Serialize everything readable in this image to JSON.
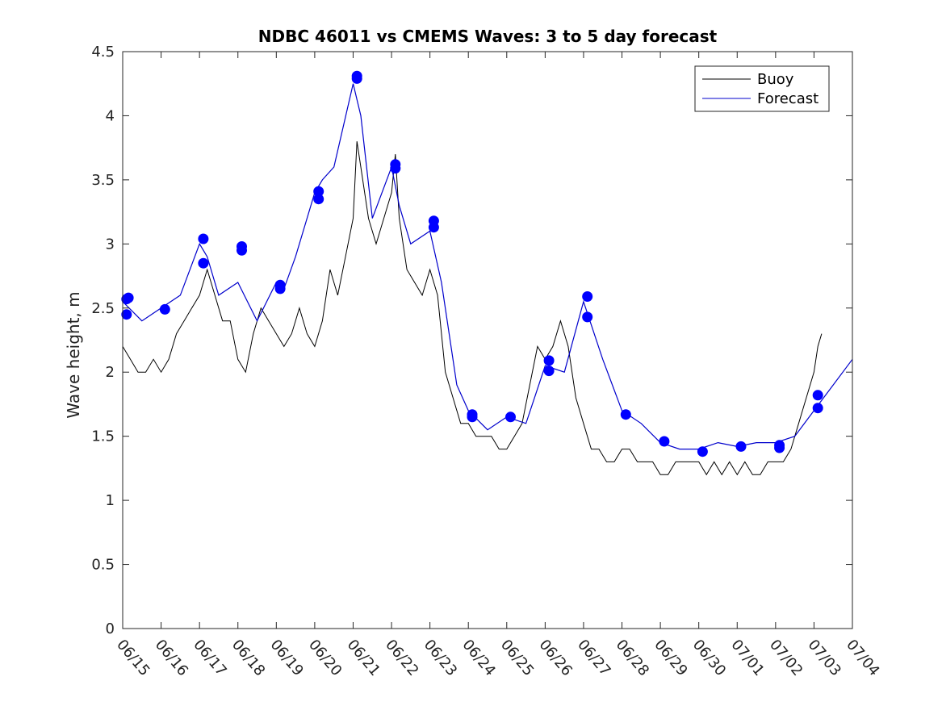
{
  "chart_data": {
    "type": "line",
    "title": "NDBC 46011 vs CMEMS Waves: 3 to 5 day forecast",
    "xlabel": "",
    "ylabel": "Wave height, m",
    "x_tick_labels": [
      "06/15",
      "06/16",
      "06/17",
      "06/18",
      "06/19",
      "06/20",
      "06/21",
      "06/22",
      "06/23",
      "06/24",
      "06/25",
      "06/26",
      "06/27",
      "06/28",
      "06/29",
      "06/30",
      "07/01",
      "07/02",
      "07/03",
      "07/04"
    ],
    "y_tick_labels": [
      "0",
      "0.5",
      "1",
      "1.5",
      "2",
      "2.5",
      "3",
      "3.5",
      "4",
      "4.5"
    ],
    "x_start_date": "06/15",
    "xlim_days": [
      0,
      19
    ],
    "ylim": [
      0,
      4.5
    ],
    "grid": false,
    "legend": {
      "placement": "top-right",
      "entries": [
        {
          "label": "Buoy",
          "color": "#000000"
        },
        {
          "label": "Forecast",
          "color": "#0000cc"
        }
      ]
    },
    "colors": {
      "buoy": "#000000",
      "forecast": "#0000cc",
      "marker": "#0000ff"
    },
    "series": [
      {
        "name": "Buoy",
        "x": [
          0,
          0.2,
          0.4,
          0.6,
          0.8,
          1.0,
          1.2,
          1.4,
          1.6,
          1.8,
          2.0,
          2.2,
          2.4,
          2.6,
          2.8,
          3.0,
          3.2,
          3.4,
          3.6,
          3.8,
          4.0,
          4.2,
          4.4,
          4.6,
          4.8,
          5.0,
          5.2,
          5.4,
          5.6,
          5.8,
          6.0,
          6.1,
          6.2,
          6.4,
          6.6,
          6.8,
          7.0,
          7.1,
          7.2,
          7.4,
          7.6,
          7.8,
          8.0,
          8.2,
          8.4,
          8.6,
          8.8,
          9.0,
          9.2,
          9.4,
          9.6,
          9.8,
          10.0,
          10.2,
          10.4,
          10.6,
          10.8,
          11.0,
          11.2,
          11.4,
          11.6,
          11.8,
          12.0,
          12.2,
          12.4,
          12.6,
          12.8,
          13.0,
          13.2,
          13.4,
          13.6,
          13.8,
          14.0,
          14.2,
          14.4,
          14.6,
          14.8,
          15.0,
          15.2,
          15.4,
          15.6,
          15.8,
          16.0,
          16.2,
          16.4,
          16.6,
          16.8,
          17.0,
          17.2,
          17.4,
          17.6,
          17.8,
          18.0,
          18.1,
          18.2
        ],
        "y": [
          2.2,
          2.1,
          2.0,
          2.0,
          2.1,
          2.0,
          2.1,
          2.3,
          2.4,
          2.5,
          2.6,
          2.8,
          2.6,
          2.4,
          2.4,
          2.1,
          2.0,
          2.3,
          2.5,
          2.4,
          2.3,
          2.2,
          2.3,
          2.5,
          2.3,
          2.2,
          2.4,
          2.8,
          2.6,
          2.9,
          3.2,
          3.8,
          3.6,
          3.2,
          3.0,
          3.2,
          3.4,
          3.7,
          3.2,
          2.8,
          2.7,
          2.6,
          2.8,
          2.6,
          2.0,
          1.8,
          1.6,
          1.6,
          1.5,
          1.5,
          1.5,
          1.4,
          1.4,
          1.5,
          1.6,
          1.9,
          2.2,
          2.1,
          2.2,
          2.4,
          2.2,
          1.8,
          1.6,
          1.4,
          1.4,
          1.3,
          1.3,
          1.4,
          1.4,
          1.3,
          1.3,
          1.3,
          1.2,
          1.2,
          1.3,
          1.3,
          1.3,
          1.3,
          1.2,
          1.3,
          1.2,
          1.3,
          1.2,
          1.3,
          1.2,
          1.2,
          1.3,
          1.3,
          1.3,
          1.4,
          1.6,
          1.8,
          2.0,
          2.2,
          2.3
        ]
      },
      {
        "name": "Forecast",
        "x": [
          0,
          0.5,
          1,
          1.5,
          2,
          2.2,
          2.5,
          3,
          3.5,
          4,
          4.2,
          4.5,
          5,
          5.2,
          5.5,
          6,
          6.2,
          6.5,
          7,
          7.2,
          7.5,
          8,
          8.3,
          8.7,
          9,
          9.5,
          10,
          10.5,
          11,
          11.5,
          12,
          12.5,
          13,
          13.5,
          14,
          14.5,
          15,
          15.5,
          16,
          16.5,
          17,
          17.5,
          18,
          18.5,
          19
        ],
        "y": [
          2.55,
          2.4,
          2.5,
          2.6,
          3.0,
          2.9,
          2.6,
          2.7,
          2.4,
          2.7,
          2.65,
          2.9,
          3.4,
          3.5,
          3.6,
          4.25,
          4.0,
          3.2,
          3.6,
          3.3,
          3.0,
          3.1,
          2.7,
          1.9,
          1.7,
          1.55,
          1.65,
          1.6,
          2.05,
          2.0,
          2.55,
          2.1,
          1.7,
          1.6,
          1.45,
          1.4,
          1.4,
          1.45,
          1.42,
          1.45,
          1.45,
          1.5,
          1.7,
          1.9,
          2.1
        ]
      }
    ],
    "forecast_markers": {
      "x": [
        0.1,
        0.1,
        0.15,
        1.1,
        2.1,
        2.1,
        3.1,
        3.1,
        4.1,
        4.1,
        5.1,
        5.1,
        6.1,
        6.1,
        7.1,
        7.1,
        8.1,
        8.1,
        9.1,
        9.1,
        10.1,
        11.1,
        11.1,
        12.1,
        12.1,
        13.1,
        14.1,
        15.1,
        16.1,
        17.1,
        17.1,
        18.1,
        18.1
      ],
      "y": [
        2.57,
        2.45,
        2.58,
        2.49,
        3.04,
        2.85,
        2.98,
        2.95,
        2.68,
        2.65,
        3.41,
        3.35,
        4.31,
        4.29,
        3.62,
        3.59,
        3.18,
        3.13,
        1.67,
        1.65,
        1.65,
        2.09,
        2.01,
        2.59,
        2.43,
        1.67,
        1.46,
        1.38,
        1.42,
        1.43,
        1.41,
        1.82,
        1.72
      ]
    }
  }
}
